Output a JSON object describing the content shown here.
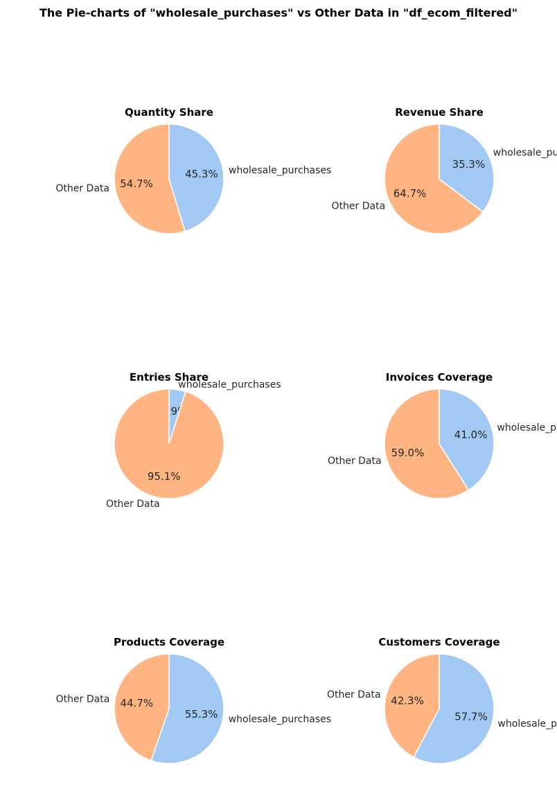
{
  "title": "The Pie-charts of \"wholesale_purchases\" vs Other Data in \"df_ecom_filtered\"",
  "colors": {
    "wholesale": "#a1c9f4",
    "other": "#ffb482",
    "edge": "#ffffff",
    "text": "#262626"
  },
  "chart_data": [
    {
      "type": "pie",
      "title": "Quantity Share",
      "labels": [
        "wholesale_purchases",
        "Other Data"
      ],
      "values": [
        45.3,
        54.7
      ],
      "value_labels": [
        "45.3%",
        "54.7%"
      ]
    },
    {
      "type": "pie",
      "title": "Revenue Share",
      "labels": [
        "wholesale_purchases",
        "Other Data"
      ],
      "values": [
        35.3,
        64.7
      ],
      "value_labels": [
        "35.3%",
        "64.7%"
      ]
    },
    {
      "type": "pie",
      "title": "Entries Share",
      "labels": [
        "wholesale_purchases",
        "Other Data"
      ],
      "values": [
        4.9,
        95.1
      ],
      "value_labels": [
        "4.9%",
        "95.1%"
      ]
    },
    {
      "type": "pie",
      "title": "Invoices Coverage",
      "labels": [
        "wholesale_purchases",
        "Other Data"
      ],
      "values": [
        41.0,
        59.0
      ],
      "value_labels": [
        "41.0%",
        "59.0%"
      ]
    },
    {
      "type": "pie",
      "title": "Products Coverage",
      "labels": [
        "wholesale_purchases",
        "Other Data"
      ],
      "values": [
        55.3,
        44.7
      ],
      "value_labels": [
        "55.3%",
        "44.7%"
      ]
    },
    {
      "type": "pie",
      "title": "Customers Coverage",
      "labels": [
        "wholesale_purchases",
        "Other Data"
      ],
      "values": [
        57.7,
        42.3
      ],
      "value_labels": [
        "57.7%",
        "42.3%"
      ]
    }
  ]
}
